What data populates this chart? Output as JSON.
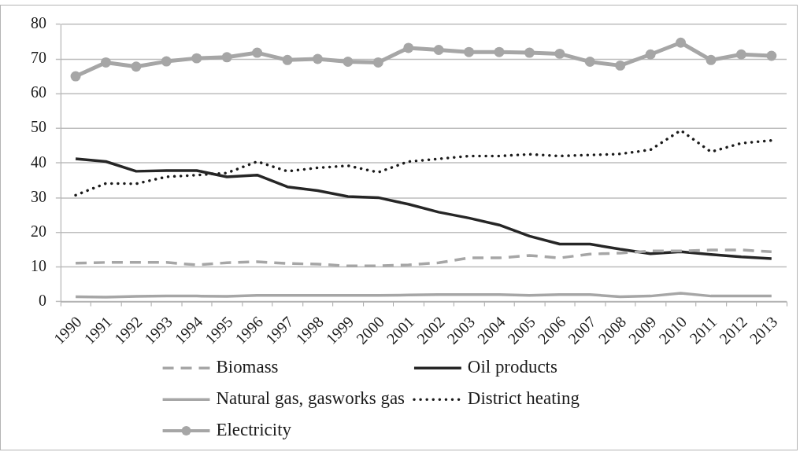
{
  "chart_data": {
    "type": "line",
    "categories": [
      "1990",
      "1991",
      "1992",
      "1993",
      "1994",
      "1995",
      "1996",
      "1997",
      "1998",
      "1999",
      "2000",
      "2001",
      "2002",
      "2003",
      "2004",
      "2005",
      "2006",
      "2007",
      "2008",
      "2009",
      "2010",
      "2011",
      "2012",
      "2013"
    ],
    "ylim": [
      0,
      80
    ],
    "yticks": [
      0,
      10,
      20,
      30,
      40,
      50,
      60,
      70,
      80
    ],
    "grid": "y",
    "legend": "bottom",
    "series": [
      {
        "name": "Biomass",
        "color": "#a6a6a6",
        "line_style": "dashed",
        "values": [
          11.1,
          11.3,
          11.3,
          11.3,
          10.6,
          11.2,
          11.5,
          11.0,
          10.8,
          10.3,
          10.3,
          10.6,
          11.2,
          12.6,
          12.6,
          13.3,
          12.6,
          13.7,
          14.0,
          14.6,
          14.6,
          14.9,
          14.9,
          14.4
        ]
      },
      {
        "name": "Oil products",
        "color": "#262626",
        "line_style": "solid",
        "values": [
          41.2,
          40.4,
          37.6,
          37.8,
          37.8,
          36.0,
          36.5,
          33.1,
          32.0,
          30.3,
          30.0,
          28.1,
          25.8,
          24.1,
          22.1,
          18.9,
          16.6,
          16.6,
          15.1,
          13.8,
          14.4,
          13.6,
          12.9,
          12.4
        ]
      },
      {
        "name": "Natural gas, gasworks gas",
        "color": "#a6a6a6",
        "line_style": "solid",
        "values": [
          1.4,
          1.3,
          1.5,
          1.6,
          1.6,
          1.5,
          1.8,
          1.8,
          1.8,
          1.8,
          1.8,
          1.9,
          2.0,
          2.0,
          2.0,
          1.8,
          2.0,
          2.0,
          1.4,
          1.6,
          2.4,
          1.6,
          1.6,
          1.6
        ]
      },
      {
        "name": "District heating",
        "color": "#1a1a1a",
        "line_style": "dotted",
        "values": [
          30.7,
          34.1,
          34.0,
          36.0,
          36.5,
          37.1,
          40.4,
          37.6,
          38.6,
          39.2,
          37.3,
          40.4,
          41.2,
          42.0,
          42.0,
          42.5,
          42.0,
          42.3,
          42.6,
          43.8,
          49.4,
          43.2,
          45.7,
          46.5
        ]
      },
      {
        "name": "Electricity",
        "color": "#a6a6a6",
        "line_style": "solid",
        "marker": "circle",
        "values": [
          65.0,
          69.0,
          67.8,
          69.3,
          70.2,
          70.5,
          71.8,
          69.7,
          70.0,
          69.2,
          69.0,
          73.2,
          72.6,
          72.0,
          72.0,
          71.8,
          71.5,
          69.2,
          68.1,
          71.3,
          74.7,
          69.7,
          71.3,
          70.9
        ]
      }
    ]
  }
}
